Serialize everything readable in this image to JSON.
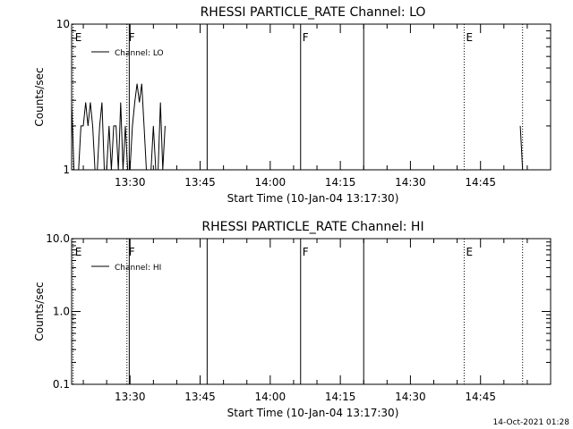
{
  "chart_data": [
    {
      "type": "line",
      "title": "RHESSI PARTICLE_RATE Channel: LO",
      "xlabel": "Start Time (10-Jan-04 13:17:30)",
      "ylabel": "Counts/sec",
      "y_scale": "log",
      "ylim": [
        1,
        10
      ],
      "y_ticks": [
        1,
        10
      ],
      "y_tick_labels": [
        "1",
        "10"
      ],
      "x_range": [
        "13:17:30",
        "15:00:00"
      ],
      "x_tick_labels": [
        "13:30",
        "13:45",
        "14:00",
        "14:15",
        "14:30",
        "14:45"
      ],
      "legend_position": "top-left",
      "series": [
        {
          "name": "Channel: LO",
          "x": [
            "13:17:30",
            "13:18:00",
            "13:18:30",
            "13:19:00",
            "13:19:30",
            "13:20:00",
            "13:20:30",
            "13:21:00",
            "13:21:30",
            "13:22:00",
            "13:22:30",
            "13:23:00",
            "13:23:30",
            "13:24:00",
            "13:24:30",
            "13:25:00",
            "13:25:30",
            "13:26:00",
            "13:26:30",
            "13:27:00",
            "13:27:30",
            "13:28:00",
            "13:28:30",
            "13:29:00",
            "13:29:30",
            "13:30:00",
            "13:30:30",
            "13:31:00",
            "13:31:30",
            "13:32:00",
            "13:32:30",
            "13:33:00",
            "13:33:30",
            "13:34:00",
            "13:34:30",
            "13:35:00",
            "13:35:30",
            "13:36:00",
            "13:36:30",
            "13:37:00",
            "13:37:30",
            "14:53:30",
            "14:54:00",
            "14:54:30"
          ],
          "y": [
            2.9,
            1,
            1,
            1,
            2,
            2,
            2.9,
            2,
            2.9,
            2,
            1,
            1,
            2,
            2.9,
            1,
            1,
            2,
            1,
            2,
            2,
            1,
            2.9,
            1,
            2,
            1,
            1,
            2,
            2.9,
            3.9,
            2.9,
            3.9,
            2,
            1,
            1,
            1,
            2,
            1,
            1,
            2.9,
            1,
            2,
            2,
            1,
            1
          ]
        }
      ],
      "markers": [
        {
          "time": "13:17:50",
          "label": "E",
          "style": "dotted"
        },
        {
          "time": "13:29:20",
          "label": "F",
          "style": "dotted"
        },
        {
          "time": "13:29:50",
          "label": "",
          "style": "solid"
        },
        {
          "time": "13:46:30",
          "label": "",
          "style": "solid"
        },
        {
          "time": "14:06:30",
          "label": "F",
          "style": "solid"
        },
        {
          "time": "14:20:00",
          "label": "",
          "style": "solid"
        },
        {
          "time": "14:41:30",
          "label": "E",
          "style": "dotted"
        },
        {
          "time": "14:54:00",
          "label": "",
          "style": "dotted"
        }
      ]
    },
    {
      "type": "line",
      "title": "RHESSI PARTICLE_RATE Channel: HI",
      "xlabel": "Start Time (10-Jan-04 13:17:30)",
      "ylabel": "Counts/sec",
      "y_scale": "log",
      "ylim": [
        0.1,
        10
      ],
      "y_ticks": [
        0.1,
        1,
        10
      ],
      "y_tick_labels": [
        "0.1",
        "1.0",
        "10.0"
      ],
      "x_range": [
        "13:17:30",
        "15:00:00"
      ],
      "x_tick_labels": [
        "13:30",
        "13:45",
        "14:00",
        "14:15",
        "14:30",
        "14:45"
      ],
      "legend_position": "top-left",
      "series": [
        {
          "name": "Channel: HI",
          "x": [],
          "y": []
        }
      ],
      "markers": [
        {
          "time": "13:17:50",
          "label": "E",
          "style": "dotted"
        },
        {
          "time": "13:29:20",
          "label": "F",
          "style": "dotted"
        },
        {
          "time": "13:29:50",
          "label": "",
          "style": "solid"
        },
        {
          "time": "13:46:30",
          "label": "",
          "style": "solid"
        },
        {
          "time": "14:06:30",
          "label": "F",
          "style": "solid"
        },
        {
          "time": "14:20:00",
          "label": "",
          "style": "solid"
        },
        {
          "time": "14:41:30",
          "label": "E",
          "style": "dotted"
        },
        {
          "time": "14:54:00",
          "label": "",
          "style": "dotted"
        }
      ]
    }
  ],
  "footer": {
    "timestamp": "14-Oct-2021 01:28"
  }
}
